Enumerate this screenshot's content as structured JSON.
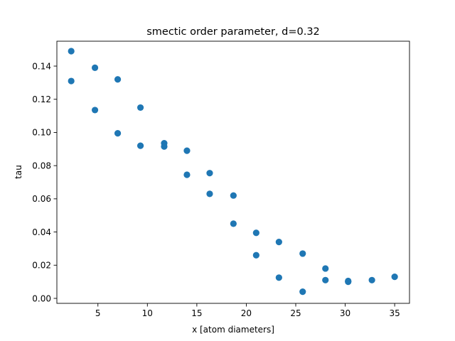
{
  "chart_data": {
    "type": "scatter",
    "title": "smectic order parameter, d=0.32",
    "xlabel": "x  [atom diameters]",
    "ylabel": "tau",
    "xlim": [
      0.85,
      36.5
    ],
    "ylim": [
      -0.003,
      0.155
    ],
    "xticks": [
      5,
      10,
      15,
      20,
      25,
      30,
      35
    ],
    "xtick_labels": [
      "5",
      "10",
      "15",
      "20",
      "25",
      "30",
      "35"
    ],
    "yticks": [
      0.0,
      0.02,
      0.04,
      0.06,
      0.08,
      0.1,
      0.12,
      0.14
    ],
    "ytick_labels": [
      "0.00",
      "0.02",
      "0.04",
      "0.06",
      "0.08",
      "0.10",
      "0.12",
      "0.14"
    ],
    "grid": false,
    "marker_color": "#1f77b4",
    "series": [
      {
        "x": [
          2.3,
          2.3,
          4.7,
          4.7,
          7.0,
          7.0,
          9.3,
          9.3,
          11.7,
          11.7,
          14.0,
          14.0,
          16.3,
          16.3,
          18.7,
          18.7,
          21.0,
          21.0,
          23.3,
          23.3,
          25.7,
          25.7,
          28.0,
          28.0,
          30.3,
          30.3,
          32.7,
          35.0
        ],
        "y": [
          0.149,
          0.131,
          0.139,
          0.1135,
          0.132,
          0.0995,
          0.115,
          0.092,
          0.0935,
          0.0915,
          0.089,
          0.0745,
          0.0755,
          0.063,
          0.062,
          0.045,
          0.0395,
          0.026,
          0.034,
          0.0125,
          0.027,
          0.004,
          0.018,
          0.011,
          0.0105,
          0.01,
          0.011,
          0.013
        ]
      }
    ]
  }
}
